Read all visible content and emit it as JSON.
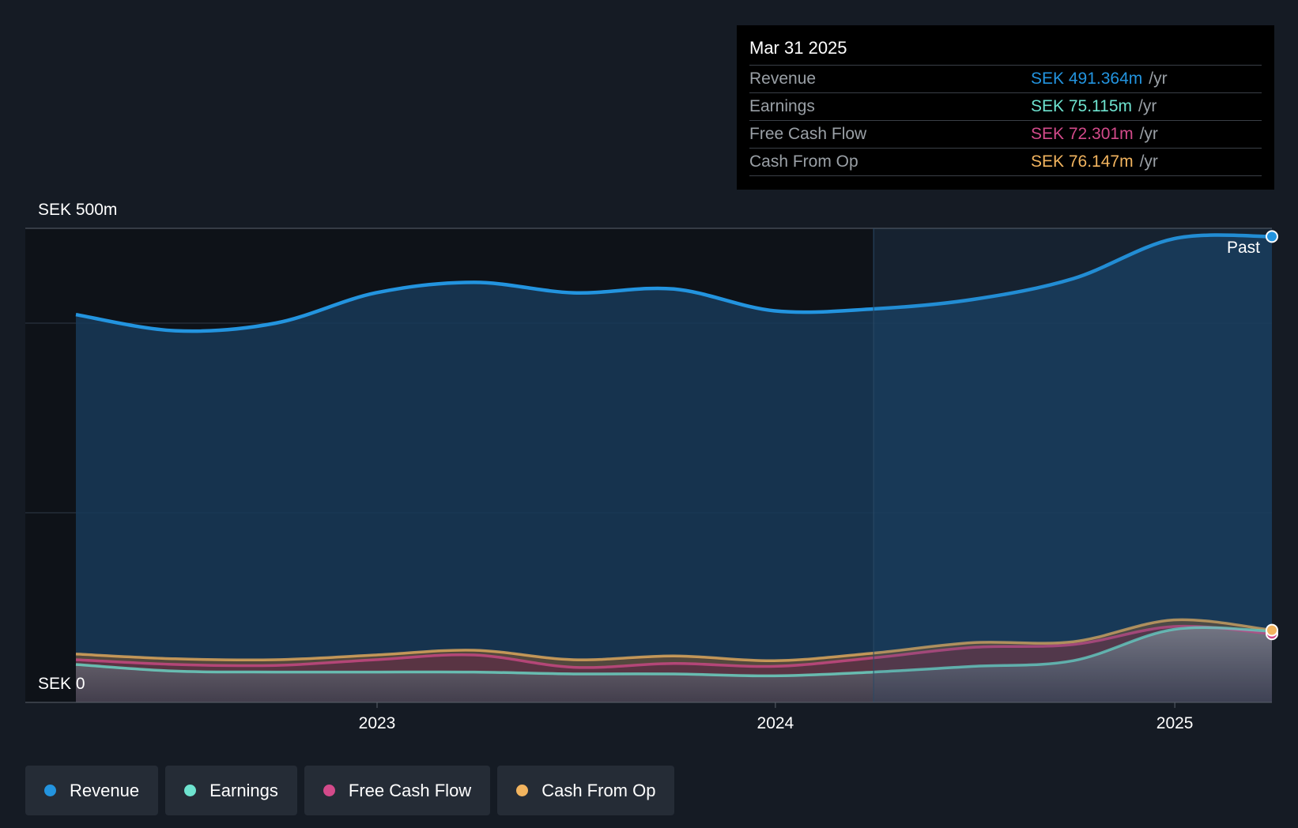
{
  "tooltip": {
    "date": "Mar 31 2025",
    "rows": [
      {
        "label": "Revenue",
        "value": "SEK 491.364m",
        "unit": "/yr",
        "color": "#2394df"
      },
      {
        "label": "Earnings",
        "value": "SEK 75.115m",
        "unit": "/yr",
        "color": "#6ee3cf"
      },
      {
        "label": "Free Cash Flow",
        "value": "SEK 72.301m",
        "unit": "/yr",
        "color": "#d34a8a"
      },
      {
        "label": "Cash From Op",
        "value": "SEK 76.147m",
        "unit": "/yr",
        "color": "#f2b45f"
      }
    ]
  },
  "past_label": "Past",
  "legend": [
    {
      "label": "Revenue",
      "color": "#2394df",
      "icon": "dot-icon"
    },
    {
      "label": "Earnings",
      "color": "#6ee3cf",
      "icon": "dot-icon"
    },
    {
      "label": "Free Cash Flow",
      "color": "#d34a8a",
      "icon": "dot-icon"
    },
    {
      "label": "Cash From Op",
      "color": "#f2b45f",
      "icon": "dot-icon"
    }
  ],
  "chart_data": {
    "type": "area",
    "currency": "SEK",
    "y_top_label": "SEK 500m",
    "y_bottom_label": "SEK 0",
    "ylim": [
      0,
      500
    ],
    "xlim": [
      "2022-03-31",
      "2025-03-31"
    ],
    "x_ticks": [
      {
        "date": "2023-01-01",
        "label": "2023"
      },
      {
        "date": "2024-01-01",
        "label": "2024"
      },
      {
        "date": "2025-01-01",
        "label": "2025"
      }
    ],
    "highlight_from": "2024-03-31",
    "grid": true,
    "dates": [
      "2022-03-31",
      "2022-06-30",
      "2022-09-30",
      "2022-12-31",
      "2023-03-31",
      "2023-06-30",
      "2023-09-30",
      "2023-12-31",
      "2024-03-31",
      "2024-06-30",
      "2024-09-30",
      "2024-12-31",
      "2025-03-31"
    ],
    "series": [
      {
        "name": "Revenue",
        "color": "#2394df",
        "values": [
          409,
          392,
          400,
          432,
          443,
          432,
          436,
          413,
          415,
          425,
          447,
          489,
          491.364
        ]
      },
      {
        "name": "Earnings",
        "color": "#6ee3cf",
        "values": [
          40,
          33,
          32,
          32,
          32,
          30,
          30,
          28,
          32,
          38,
          44,
          77,
          75.115
        ]
      },
      {
        "name": "Free Cash Flow",
        "color": "#d34a8a",
        "values": [
          45,
          40,
          39,
          45,
          50,
          37,
          41,
          38,
          47,
          58,
          61,
          80,
          72.301
        ]
      },
      {
        "name": "Cash From Op",
        "color": "#f2b45f",
        "values": [
          51,
          46,
          45,
          50,
          55,
          45,
          49,
          44,
          52,
          63,
          64,
          87,
          76.147
        ]
      }
    ]
  }
}
